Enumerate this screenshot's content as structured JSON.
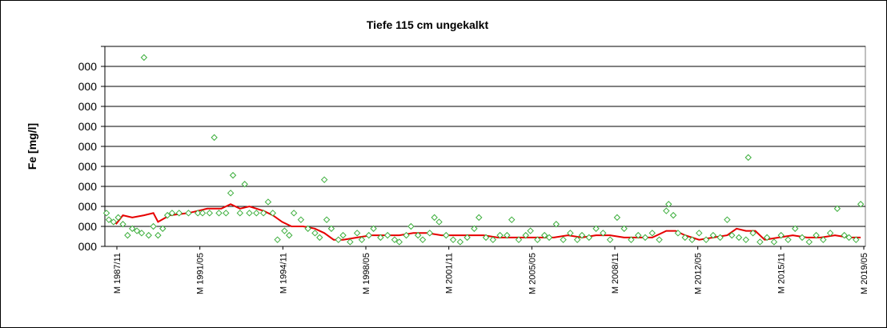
{
  "chart_data": {
    "type": "scatter",
    "title": "Tiefe 115 cm   ungekalkt",
    "ylabel": "Fe [mg/l]",
    "xlabel": "",
    "x_tick_labels": [
      "M 1987/11",
      "M 1991/05",
      "M 1994/11",
      "M 1998/05",
      "M 2001/11",
      "M 2005/05",
      "M 2008/11",
      "M 2012/05",
      "M 2015/11",
      "M 2019/05"
    ],
    "y_tick_labels": [
      "000",
      "000",
      "000",
      "000",
      "000",
      "000",
      "000",
      "000",
      "000",
      "000"
    ],
    "ylim": [
      0,
      9
    ],
    "grid": "horizontal",
    "legend": "none",
    "colors": {
      "points": "#3cae3c",
      "trend": "#e60000",
      "grid": "#000000"
    },
    "series": [
      {
        "marker": "diamond",
        "points": [
          [
            1987.9,
            1.5
          ],
          [
            1988.0,
            1.2
          ],
          [
            1988.2,
            1.1
          ],
          [
            1988.4,
            1.3
          ],
          [
            1988.6,
            1.0
          ],
          [
            1988.8,
            0.5
          ],
          [
            1989.0,
            0.8
          ],
          [
            1989.2,
            0.7
          ],
          [
            1989.4,
            0.6
          ],
          [
            1989.5,
            8.5
          ],
          [
            1989.7,
            0.5
          ],
          [
            1989.9,
            0.9
          ],
          [
            1990.1,
            0.5
          ],
          [
            1990.3,
            0.8
          ],
          [
            1990.5,
            1.4
          ],
          [
            1990.7,
            1.5
          ],
          [
            1991.0,
            1.5
          ],
          [
            1991.4,
            1.5
          ],
          [
            1991.8,
            1.5
          ],
          [
            1992.0,
            1.5
          ],
          [
            1992.3,
            1.5
          ],
          [
            1992.5,
            4.9
          ],
          [
            1992.7,
            1.5
          ],
          [
            1993.0,
            1.5
          ],
          [
            1993.2,
            2.4
          ],
          [
            1993.3,
            3.2
          ],
          [
            1993.6,
            1.5
          ],
          [
            1993.8,
            2.8
          ],
          [
            1994.0,
            1.5
          ],
          [
            1994.3,
            1.5
          ],
          [
            1994.6,
            1.5
          ],
          [
            1994.8,
            2.0
          ],
          [
            1995.0,
            1.5
          ],
          [
            1995.2,
            0.3
          ],
          [
            1995.5,
            0.7
          ],
          [
            1995.7,
            0.5
          ],
          [
            1995.9,
            1.5
          ],
          [
            1996.2,
            1.2
          ],
          [
            1996.5,
            0.8
          ],
          [
            1996.8,
            0.6
          ],
          [
            1997.0,
            0.4
          ],
          [
            1997.2,
            3.0
          ],
          [
            1997.3,
            1.2
          ],
          [
            1997.5,
            0.8
          ],
          [
            1997.8,
            0.3
          ],
          [
            1998.0,
            0.5
          ],
          [
            1998.3,
            0.2
          ],
          [
            1998.6,
            0.6
          ],
          [
            1998.8,
            0.3
          ],
          [
            1999.1,
            0.5
          ],
          [
            1999.3,
            0.8
          ],
          [
            1999.6,
            0.4
          ],
          [
            1999.9,
            0.5
          ],
          [
            2000.2,
            0.3
          ],
          [
            2000.4,
            0.2
          ],
          [
            2000.7,
            0.5
          ],
          [
            2000.9,
            0.9
          ],
          [
            2001.2,
            0.5
          ],
          [
            2001.4,
            0.3
          ],
          [
            2001.7,
            0.6
          ],
          [
            2001.9,
            1.3
          ],
          [
            2002.1,
            1.1
          ],
          [
            2002.4,
            0.5
          ],
          [
            2002.7,
            0.3
          ],
          [
            2003.0,
            0.2
          ],
          [
            2003.3,
            0.4
          ],
          [
            2003.6,
            0.8
          ],
          [
            2003.8,
            1.3
          ],
          [
            2004.1,
            0.4
          ],
          [
            2004.4,
            0.3
          ],
          [
            2004.7,
            0.5
          ],
          [
            2005.0,
            0.5
          ],
          [
            2005.2,
            1.2
          ],
          [
            2005.5,
            0.3
          ],
          [
            2005.8,
            0.5
          ],
          [
            2006.0,
            0.7
          ],
          [
            2006.3,
            0.3
          ],
          [
            2006.6,
            0.5
          ],
          [
            2006.8,
            0.4
          ],
          [
            2007.1,
            1.0
          ],
          [
            2007.4,
            0.3
          ],
          [
            2007.7,
            0.6
          ],
          [
            2008.0,
            0.3
          ],
          [
            2008.2,
            0.5
          ],
          [
            2008.5,
            0.4
          ],
          [
            2008.8,
            0.8
          ],
          [
            2009.1,
            0.6
          ],
          [
            2009.4,
            0.3
          ],
          [
            2009.7,
            1.3
          ],
          [
            2010.0,
            0.8
          ],
          [
            2010.3,
            0.3
          ],
          [
            2010.6,
            0.5
          ],
          [
            2010.9,
            0.4
          ],
          [
            2011.2,
            0.6
          ],
          [
            2011.5,
            0.3
          ],
          [
            2011.8,
            1.6
          ],
          [
            2011.9,
            1.9
          ],
          [
            2012.1,
            1.4
          ],
          [
            2012.3,
            0.6
          ],
          [
            2012.6,
            0.4
          ],
          [
            2012.9,
            0.3
          ],
          [
            2013.2,
            0.6
          ],
          [
            2013.5,
            0.3
          ],
          [
            2013.8,
            0.5
          ],
          [
            2014.1,
            0.4
          ],
          [
            2014.4,
            1.2
          ],
          [
            2014.6,
            0.5
          ],
          [
            2014.9,
            0.4
          ],
          [
            2015.2,
            0.3
          ],
          [
            2015.3,
            4.0
          ],
          [
            2015.5,
            0.6
          ],
          [
            2015.8,
            0.2
          ],
          [
            2016.1,
            0.4
          ],
          [
            2016.4,
            0.2
          ],
          [
            2016.7,
            0.5
          ],
          [
            2017.0,
            0.3
          ],
          [
            2017.3,
            0.8
          ],
          [
            2017.6,
            0.4
          ],
          [
            2017.9,
            0.2
          ],
          [
            2018.2,
            0.5
          ],
          [
            2018.5,
            0.3
          ],
          [
            2018.8,
            0.6
          ],
          [
            2019.1,
            1.7
          ],
          [
            2019.4,
            0.5
          ],
          [
            2019.6,
            0.4
          ],
          [
            2019.9,
            0.3
          ],
          [
            2020.1,
            1.9
          ]
        ]
      },
      {
        "marker": "line",
        "points": [
          [
            1988.3,
            1.0
          ],
          [
            1988.6,
            1.4
          ],
          [
            1989.0,
            1.3
          ],
          [
            1989.5,
            1.4
          ],
          [
            1989.9,
            1.5
          ],
          [
            1990.1,
            1.1
          ],
          [
            1990.6,
            1.4
          ],
          [
            1991.4,
            1.5
          ],
          [
            1992.2,
            1.7
          ],
          [
            1992.8,
            1.7
          ],
          [
            1993.2,
            1.9
          ],
          [
            1993.6,
            1.7
          ],
          [
            1994.0,
            1.8
          ],
          [
            1994.6,
            1.6
          ],
          [
            1995.0,
            1.4
          ],
          [
            1995.4,
            1.1
          ],
          [
            1995.8,
            0.9
          ],
          [
            1996.3,
            0.9
          ],
          [
            1996.8,
            0.8
          ],
          [
            1997.2,
            0.6
          ],
          [
            1997.6,
            0.3
          ],
          [
            1998.0,
            0.3
          ],
          [
            1998.6,
            0.4
          ],
          [
            1999.2,
            0.5
          ],
          [
            1999.8,
            0.5
          ],
          [
            2000.4,
            0.5
          ],
          [
            2001.0,
            0.6
          ],
          [
            2001.6,
            0.6
          ],
          [
            2002.2,
            0.5
          ],
          [
            2002.8,
            0.5
          ],
          [
            2003.4,
            0.5
          ],
          [
            2004.0,
            0.5
          ],
          [
            2004.6,
            0.4
          ],
          [
            2005.2,
            0.4
          ],
          [
            2005.8,
            0.4
          ],
          [
            2006.4,
            0.4
          ],
          [
            2007.0,
            0.4
          ],
          [
            2007.6,
            0.5
          ],
          [
            2008.2,
            0.4
          ],
          [
            2008.8,
            0.5
          ],
          [
            2009.4,
            0.5
          ],
          [
            2010.0,
            0.4
          ],
          [
            2010.6,
            0.4
          ],
          [
            2011.2,
            0.4
          ],
          [
            2011.8,
            0.7
          ],
          [
            2012.2,
            0.7
          ],
          [
            2012.6,
            0.5
          ],
          [
            2013.2,
            0.3
          ],
          [
            2013.8,
            0.4
          ],
          [
            2014.4,
            0.5
          ],
          [
            2014.8,
            0.8
          ],
          [
            2015.2,
            0.7
          ],
          [
            2015.6,
            0.7
          ],
          [
            2016.0,
            0.3
          ],
          [
            2016.6,
            0.4
          ],
          [
            2017.2,
            0.5
          ],
          [
            2017.8,
            0.4
          ],
          [
            2018.4,
            0.4
          ],
          [
            2019.0,
            0.5
          ],
          [
            2019.6,
            0.4
          ],
          [
            2020.1,
            0.4
          ]
        ]
      }
    ]
  }
}
